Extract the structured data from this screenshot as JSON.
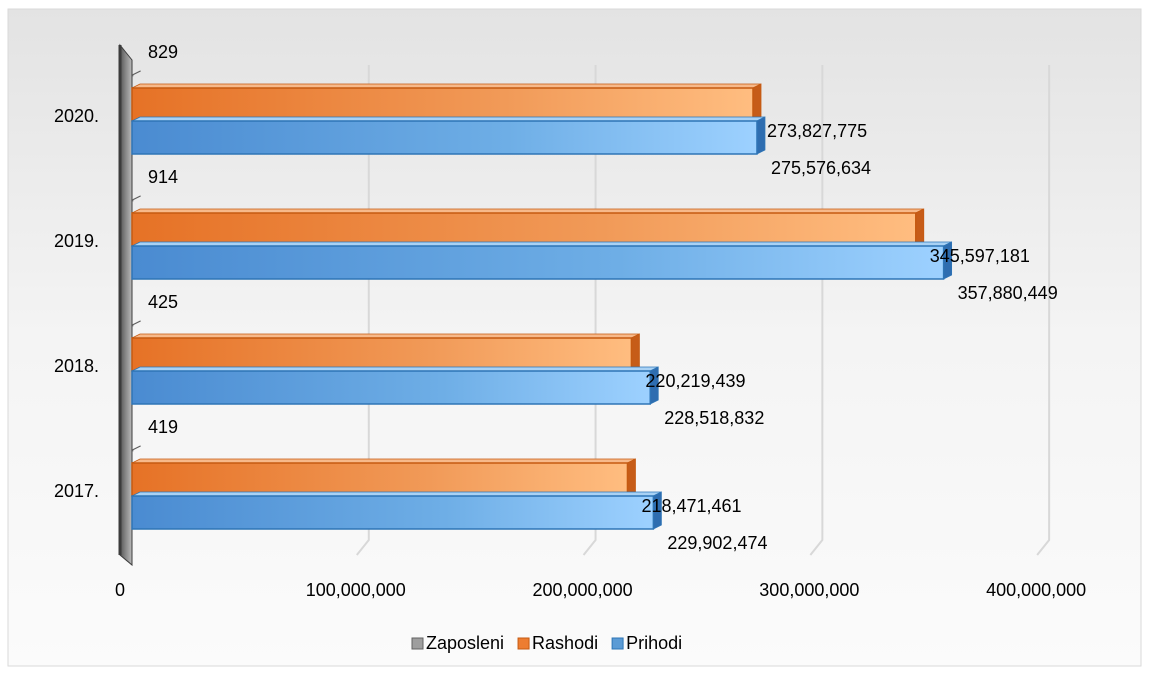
{
  "chart_data": {
    "type": "bar",
    "orientation": "horizontal",
    "three_d": true,
    "categories": [
      "2017.",
      "2018.",
      "2019.",
      "2020."
    ],
    "series": [
      {
        "name": "Zaposleni",
        "values": [
          419,
          425,
          914,
          829
        ],
        "color": "#9e9e9e"
      },
      {
        "name": "Rashodi",
        "values": [
          218471461,
          220219439,
          345597181,
          273827775
        ],
        "color": "#ed7d31"
      },
      {
        "name": "Prihodi",
        "values": [
          229902474,
          228518832,
          357880449,
          275576634
        ],
        "color": "#5b9bd5"
      }
    ],
    "value_labels": [
      [
        "419",
        "425",
        "914",
        "829"
      ],
      [
        "218,471,461",
        "220,219,439",
        "345,597,181",
        "273,827,775"
      ],
      [
        "229,902,474",
        "228,518,832",
        "357,880,449",
        "275,576,634"
      ]
    ],
    "x_ticks": [
      0,
      100000000,
      200000000,
      300000000,
      400000000
    ],
    "x_tick_labels": [
      "0",
      "100,000,000",
      "200,000,000",
      "300,000,000",
      "400,000,000"
    ],
    "xlim": [
      0,
      400000000
    ],
    "grid": true,
    "legend": {
      "position": "bottom",
      "entries": [
        "Zaposleni",
        "Rashodi",
        "Prihodi"
      ]
    },
    "title": "",
    "xlabel": "",
    "ylabel": ""
  }
}
